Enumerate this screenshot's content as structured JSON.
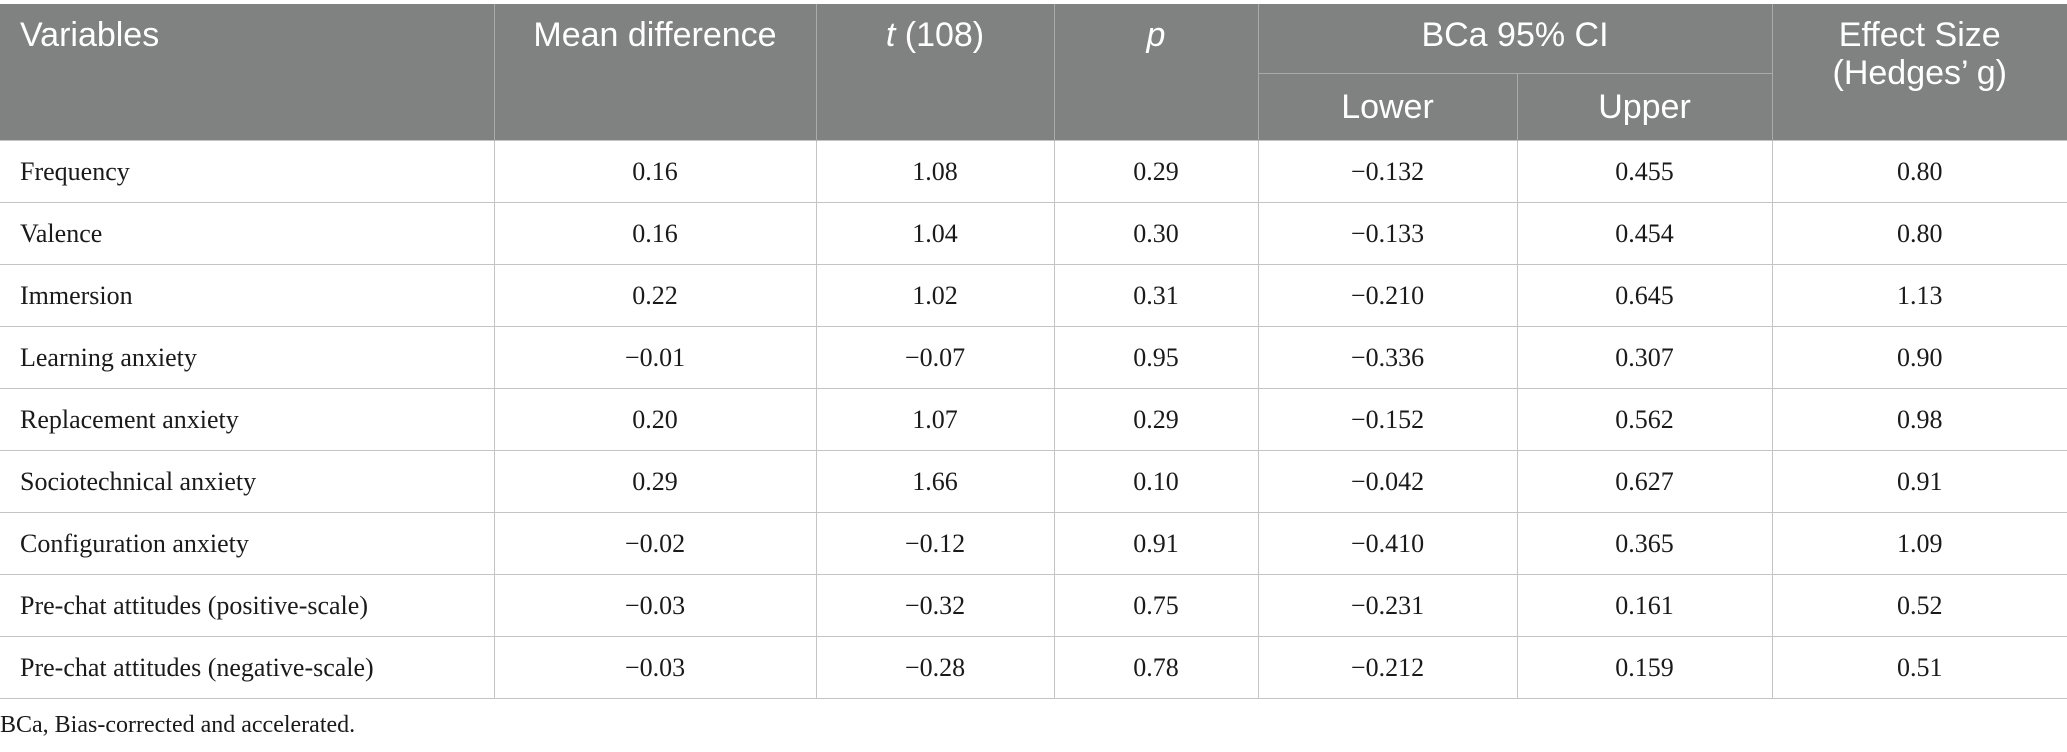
{
  "header": {
    "variables": "Variables",
    "mean_difference": "Mean difference",
    "t_symbol": "t",
    "t_df": " (108)",
    "p": "p",
    "ci_group": "BCa 95% CI",
    "ci_lower": "Lower",
    "ci_upper": "Upper",
    "effect_size_line1": "Effect Size",
    "effect_size_line2": "(Hedges’ g)"
  },
  "rows": [
    {
      "variable": "Frequency",
      "mean_difference": "0.16",
      "t": "1.08",
      "p": "0.29",
      "lower": "−0.132",
      "upper": "0.455",
      "effect_size": "0.80"
    },
    {
      "variable": "Valence",
      "mean_difference": "0.16",
      "t": "1.04",
      "p": "0.30",
      "lower": "−0.133",
      "upper": "0.454",
      "effect_size": "0.80"
    },
    {
      "variable": "Immersion",
      "mean_difference": "0.22",
      "t": "1.02",
      "p": "0.31",
      "lower": "−0.210",
      "upper": "0.645",
      "effect_size": "1.13"
    },
    {
      "variable": "Learning anxiety",
      "mean_difference": "−0.01",
      "t": "−0.07",
      "p": "0.95",
      "lower": "−0.336",
      "upper": "0.307",
      "effect_size": "0.90"
    },
    {
      "variable": "Replacement anxiety",
      "mean_difference": "0.20",
      "t": "1.07",
      "p": "0.29",
      "lower": "−0.152",
      "upper": "0.562",
      "effect_size": "0.98"
    },
    {
      "variable": "Sociotechnical anxiety",
      "mean_difference": "0.29",
      "t": "1.66",
      "p": "0.10",
      "lower": "−0.042",
      "upper": "0.627",
      "effect_size": "0.91"
    },
    {
      "variable": "Configuration anxiety",
      "mean_difference": "−0.02",
      "t": "−0.12",
      "p": "0.91",
      "lower": "−0.410",
      "upper": "0.365",
      "effect_size": "1.09"
    },
    {
      "variable": "Pre-chat attitudes (positive-scale)",
      "mean_difference": "−0.03",
      "t": "−0.32",
      "p": "0.75",
      "lower": "−0.231",
      "upper": "0.161",
      "effect_size": "0.52"
    },
    {
      "variable": "Pre-chat attitudes (negative-scale)",
      "mean_difference": "−0.03",
      "t": "−0.28",
      "p": "0.78",
      "lower": "−0.212",
      "upper": "0.159",
      "effect_size": "0.51"
    }
  ],
  "footnote": "BCa, Bias-corrected and accelerated.",
  "colors": {
    "header_bg": "#808281",
    "header_text": "#ffffff",
    "grid": "#c4c4c4"
  }
}
